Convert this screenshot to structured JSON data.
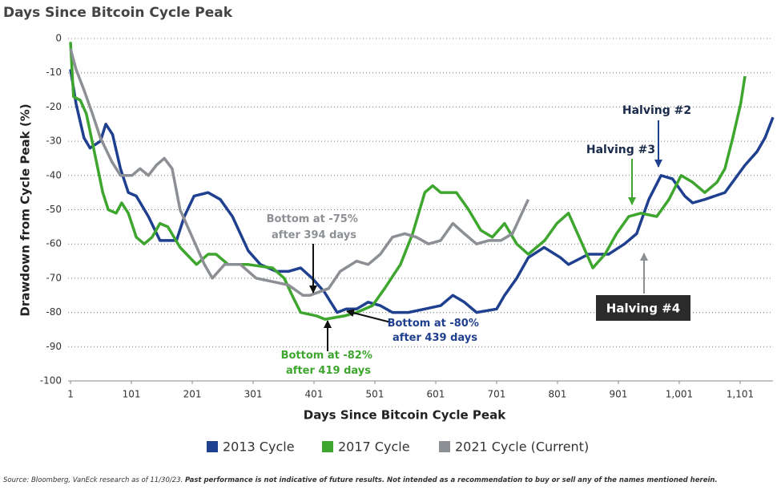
{
  "chart_data": {
    "type": "line",
    "title": "Days Since Bitcoin Cycle Peak",
    "x_label": "Days Since Bitcoin Cycle Peak",
    "y_label": "Drawdown from Cycle Peak (%)",
    "xlim": [
      -3,
      1155
    ],
    "ylim": [
      -100,
      0
    ],
    "xticks": [
      1,
      101,
      201,
      301,
      401,
      501,
      601,
      701,
      801,
      901,
      {
        "value": 1001,
        "label": "1,001"
      },
      {
        "value": 1101,
        "label": "1,101"
      }
    ],
    "yticks": [
      0,
      -10,
      -20,
      -30,
      -40,
      -50,
      -60,
      -70,
      -80,
      -90,
      -100
    ],
    "grid": true,
    "series": [
      {
        "name": "2013 Cycle",
        "color": "#1f3f8f",
        "x": [
          1,
          10,
          23,
          33,
          50,
          59,
          70,
          83,
          96,
          109,
          129,
          148,
          175,
          188,
          204,
          227,
          247,
          267,
          293,
          313,
          339,
          359,
          379,
          398,
          418,
          439,
          454,
          471,
          490,
          510,
          530,
          556,
          583,
          609,
          629,
          648,
          668,
          701,
          714,
          734,
          753,
          779,
          806,
          819,
          852,
          885,
          911,
          931,
          951,
          971,
          990,
          1010,
          1023,
          1043,
          1076,
          1109,
          1129,
          1142,
          1155
        ],
        "values": [
          -9,
          -19,
          -29,
          -32,
          -30,
          -25,
          -28,
          -38,
          -45,
          -46,
          -52,
          -59,
          -59,
          -52,
          -46,
          -45,
          -47,
          -52,
          -62,
          -66,
          -68,
          -68,
          -67,
          -70,
          -74,
          -80,
          -79,
          -79,
          -77,
          -78,
          -80,
          -80,
          -79,
          -78,
          -75,
          -77,
          -80,
          -79,
          -75,
          -70,
          -64,
          -61,
          -64,
          -66,
          -63,
          -63,
          -60,
          -57,
          -47,
          -40,
          -41,
          -46,
          -48,
          -47,
          -45,
          -37,
          -33,
          -29,
          -23
        ]
      },
      {
        "name": "2017 Cycle",
        "color": "#3ea62f",
        "x": [
          1,
          6,
          17,
          27,
          40,
          54,
          63,
          76,
          85,
          96,
          109,
          122,
          135,
          148,
          161,
          181,
          208,
          227,
          240,
          260,
          293,
          333,
          352,
          365,
          379,
          405,
          419,
          451,
          471,
          497,
          517,
          543,
          563,
          583,
          596,
          609,
          635,
          655,
          675,
          694,
          714,
          734,
          753,
          780,
          800,
          819,
          839,
          859,
          879,
          898,
          918,
          938,
          964,
          984,
          1004,
          1023,
          1043,
          1063,
          1076,
          1089,
          1102,
          1109
        ],
        "values": [
          -1,
          -17,
          -18,
          -22,
          -33,
          -45,
          -50,
          -51,
          -48,
          -51,
          -58,
          -60,
          -58,
          -54,
          -55,
          -61,
          -66,
          -63,
          -63,
          -66,
          -66,
          -67,
          -70,
          -75,
          -80,
          -81,
          -82,
          -81,
          -80,
          -78,
          -73,
          -66,
          -57,
          -45,
          -43,
          -45,
          -45,
          -50,
          -56,
          -58,
          -54,
          -60,
          -63,
          -59,
          -54,
          -51,
          -59,
          -67,
          -63,
          -57,
          -52,
          -51,
          -52,
          -47,
          -40,
          -42,
          -45,
          -42,
          -38,
          -29,
          -19,
          -11
        ]
      },
      {
        "name": "2021 Cycle (Current)",
        "color": "#8c8f94",
        "x": [
          1,
          10,
          23,
          37,
          50,
          69,
          83,
          102,
          115,
          129,
          142,
          155,
          168,
          181,
          201,
          221,
          234,
          254,
          280,
          306,
          333,
          359,
          383,
          394,
          425,
          444,
          471,
          490,
          510,
          530,
          550,
          569,
          589,
          609,
          629,
          648,
          668,
          688,
          708,
          727,
          740,
          753
        ],
        "values": [
          -3,
          -9,
          -15,
          -22,
          -29,
          -36,
          -40,
          -40,
          -38,
          -40,
          -37,
          -35,
          -38,
          -50,
          -58,
          -66,
          -70,
          -66,
          -66,
          -70,
          -71,
          -72,
          -75,
          -75,
          -73,
          -68,
          -65,
          -66,
          -63,
          -58,
          -57,
          -58,
          -60,
          -59,
          -54,
          -57,
          -60,
          -59,
          -59,
          -57,
          -52,
          -47
        ]
      }
    ],
    "annotations": [
      {
        "lines": [
          "Bottom at -75%",
          "after 394 days"
        ],
        "color": "#8c8f94"
      },
      {
        "lines": [
          "Bottom at -80%",
          "after 439 days"
        ],
        "color": "#1f3f8f"
      },
      {
        "lines": [
          "Bottom at -82%",
          "after 419 days"
        ],
        "color": "#3ea62f"
      },
      {
        "lines": [
          "Halving #2"
        ],
        "color": "#1a2a4a"
      },
      {
        "lines": [
          "Halving #3"
        ],
        "color": "#1a2a4a"
      },
      {
        "lines": [
          "Halving #4"
        ],
        "color": "#ffffff"
      }
    ],
    "source": "Source: Bloomberg, VanEck research as of 11/30/23.",
    "disclaimer": "Past performance is not indicative of future results. Not intended as a recommendation to buy or sell any of the names mentioned herein."
  }
}
